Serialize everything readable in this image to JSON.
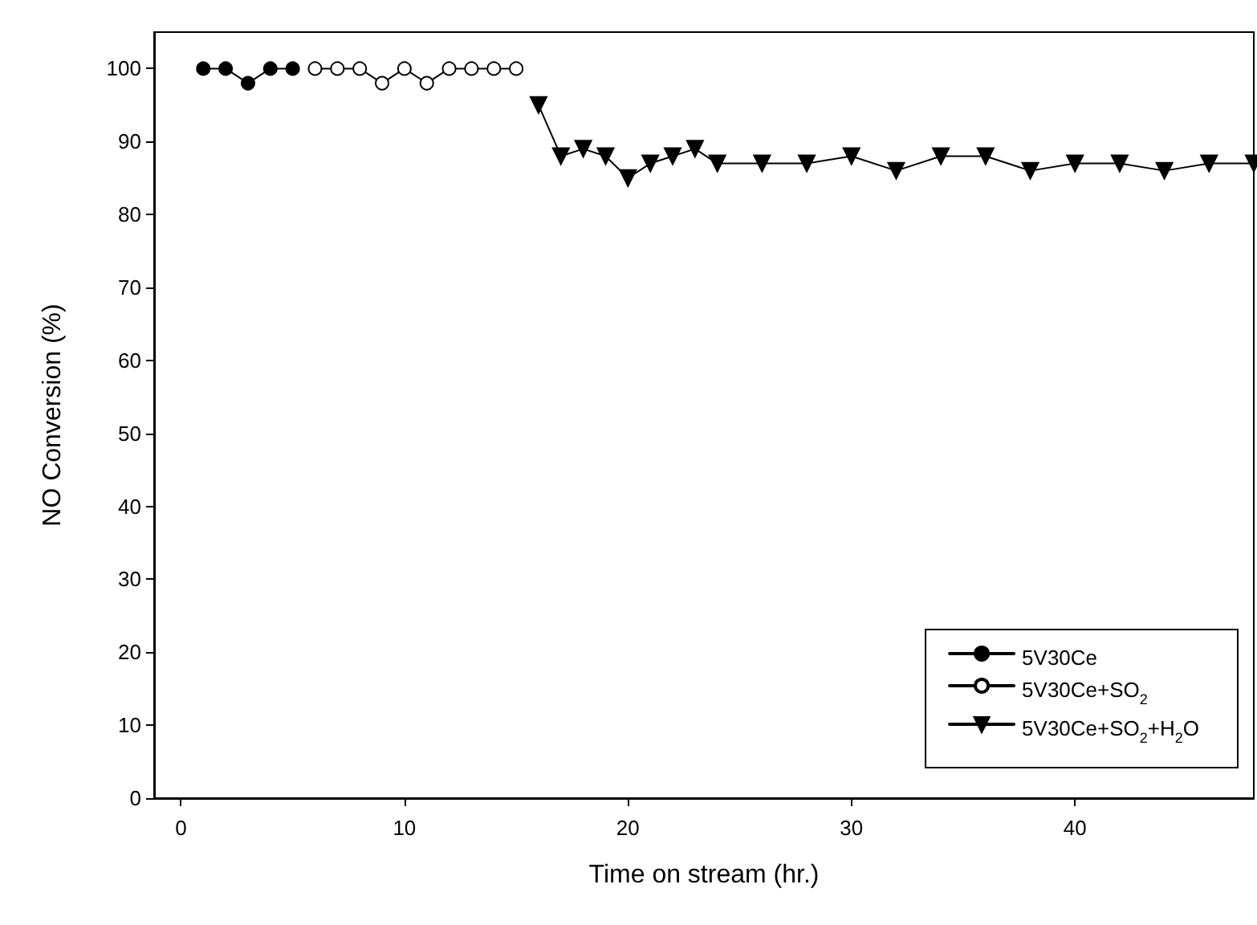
{
  "chart_data": {
    "type": "line",
    "xlabel": "Time on stream (hr.)",
    "ylabel": "NO Conversion (%)",
    "xlim": [
      -1.2,
      48
    ],
    "xticks": [
      0,
      10,
      20,
      30,
      40
    ],
    "ylim": [
      0,
      105
    ],
    "yticks": [
      0,
      10,
      20,
      30,
      40,
      50,
      60,
      70,
      80,
      90,
      100
    ],
    "grid": false,
    "legend": "bottom right",
    "line_style": "solid",
    "series": [
      {
        "name": "5V30Ce",
        "color": "#000000",
        "marker": "circle",
        "x": [
          1,
          2,
          3,
          4,
          5
        ],
        "values": [
          100,
          100,
          98,
          100,
          100
        ]
      },
      {
        "name": "5V30Ce+SO$_{2}$",
        "color": "#000000",
        "marker": "open-circle",
        "x": [
          6,
          7,
          8,
          9,
          10,
          11,
          12,
          13,
          14,
          15
        ],
        "values": [
          100,
          100,
          100,
          98,
          100,
          98,
          100,
          100,
          100,
          100
        ]
      },
      {
        "name": "5V30Ce+SO$_{2}$+H$_{2}$O",
        "color": "#000000",
        "marker": "triangle-down",
        "x": [
          16,
          17,
          18,
          19,
          20,
          21,
          22,
          23,
          24,
          26,
          28,
          30,
          32,
          34,
          36,
          38,
          40,
          42,
          44,
          46,
          48
        ],
        "values": [
          95,
          88,
          89,
          88,
          85,
          87,
          88,
          89,
          87,
          87,
          87,
          88,
          86,
          88,
          88,
          86,
          87,
          87,
          86,
          87,
          87
        ]
      }
    ]
  }
}
